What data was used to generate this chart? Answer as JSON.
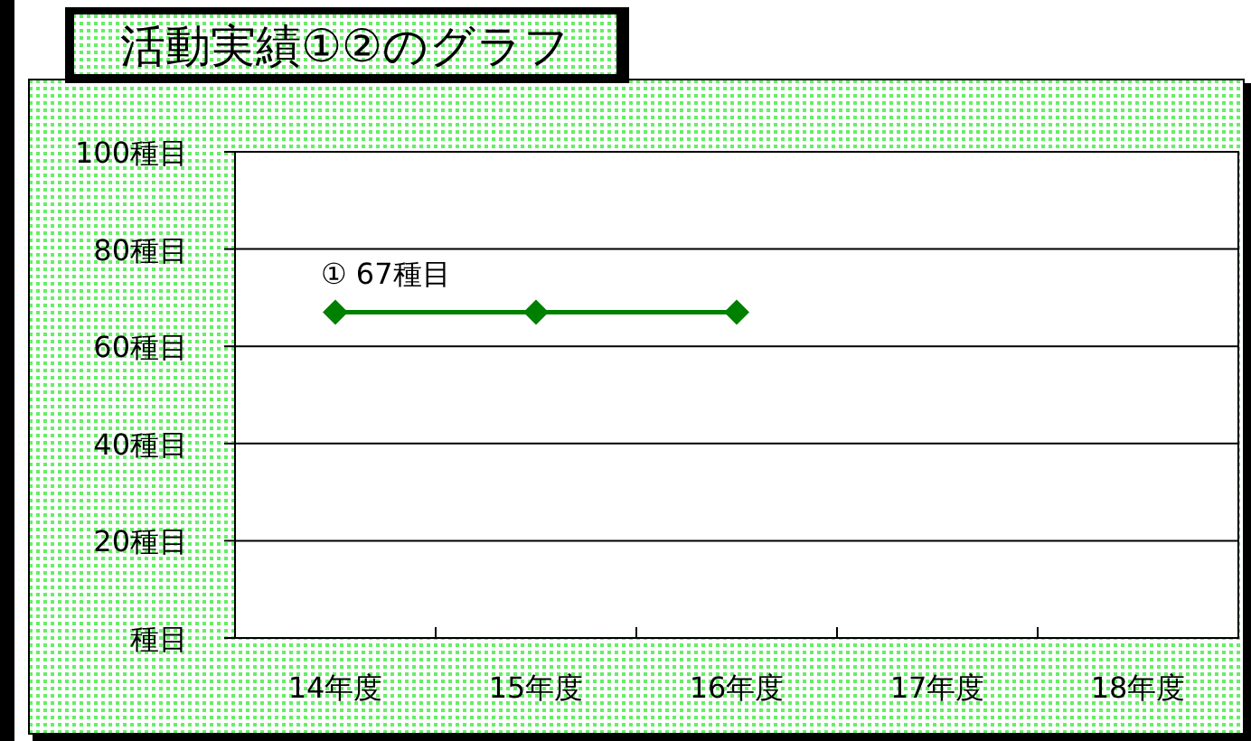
{
  "chart_data": {
    "type": "line",
    "title": "活動実績①②のグラフ",
    "categories": [
      "14年度",
      "15年度",
      "16年度",
      "17年度",
      "18年度"
    ],
    "series": [
      {
        "color": "#008000",
        "values": [
          67,
          67,
          67,
          null,
          null
        ]
      }
    ],
    "ylim": [
      0,
      100
    ],
    "yticks": [
      {
        "value": 0,
        "label": "種目"
      },
      {
        "value": 20,
        "label": "20種目"
      },
      {
        "value": 40,
        "label": "40種目"
      },
      {
        "value": 60,
        "label": "60種目"
      },
      {
        "value": 80,
        "label": "80種目"
      },
      {
        "value": 100,
        "label": "100種目"
      }
    ],
    "grid": "y",
    "marker": "diamond",
    "line_style": "solid",
    "annotations": [
      {
        "text": "① 67種目",
        "x": "14年度",
        "y": 67
      }
    ]
  }
}
